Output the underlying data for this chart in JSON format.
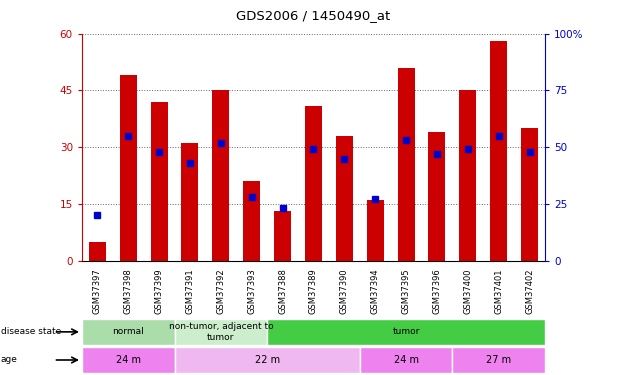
{
  "title": "GDS2006 / 1450490_at",
  "samples": [
    "GSM37397",
    "GSM37398",
    "GSM37399",
    "GSM37391",
    "GSM37392",
    "GSM37393",
    "GSM37388",
    "GSM37389",
    "GSM37390",
    "GSM37394",
    "GSM37395",
    "GSM37396",
    "GSM37400",
    "GSM37401",
    "GSM37402"
  ],
  "counts": [
    5,
    49,
    42,
    31,
    45,
    21,
    13,
    41,
    33,
    16,
    51,
    34,
    45,
    58,
    35
  ],
  "percentiles": [
    20,
    55,
    48,
    43,
    52,
    28,
    23,
    49,
    45,
    27,
    53,
    47,
    49,
    55,
    48
  ],
  "ylim_left": [
    0,
    60
  ],
  "ylim_right": [
    0,
    100
  ],
  "yticks_left": [
    0,
    15,
    30,
    45,
    60
  ],
  "yticks_right": [
    0,
    25,
    50,
    75,
    100
  ],
  "bar_color": "#cc0000",
  "dot_color": "#0000cc",
  "disease_state_groups": [
    {
      "label": "normal",
      "start": 0,
      "end": 3,
      "color": "#aaddaa"
    },
    {
      "label": "non-tumor, adjacent to\ntumor",
      "start": 3,
      "end": 6,
      "color": "#cceecc"
    },
    {
      "label": "tumor",
      "start": 6,
      "end": 15,
      "color": "#44cc44"
    }
  ],
  "age_groups": [
    {
      "label": "24 m",
      "start": 0,
      "end": 3,
      "color": "#ee82ee"
    },
    {
      "label": "22 m",
      "start": 3,
      "end": 9,
      "color": "#f0b8f0"
    },
    {
      "label": "24 m",
      "start": 9,
      "end": 12,
      "color": "#ee82ee"
    },
    {
      "label": "27 m",
      "start": 12,
      "end": 15,
      "color": "#ee82ee"
    }
  ],
  "left_axis_color": "#cc0000",
  "right_axis_color": "#0000cc",
  "bar_width": 0.55,
  "dot_size": 5
}
